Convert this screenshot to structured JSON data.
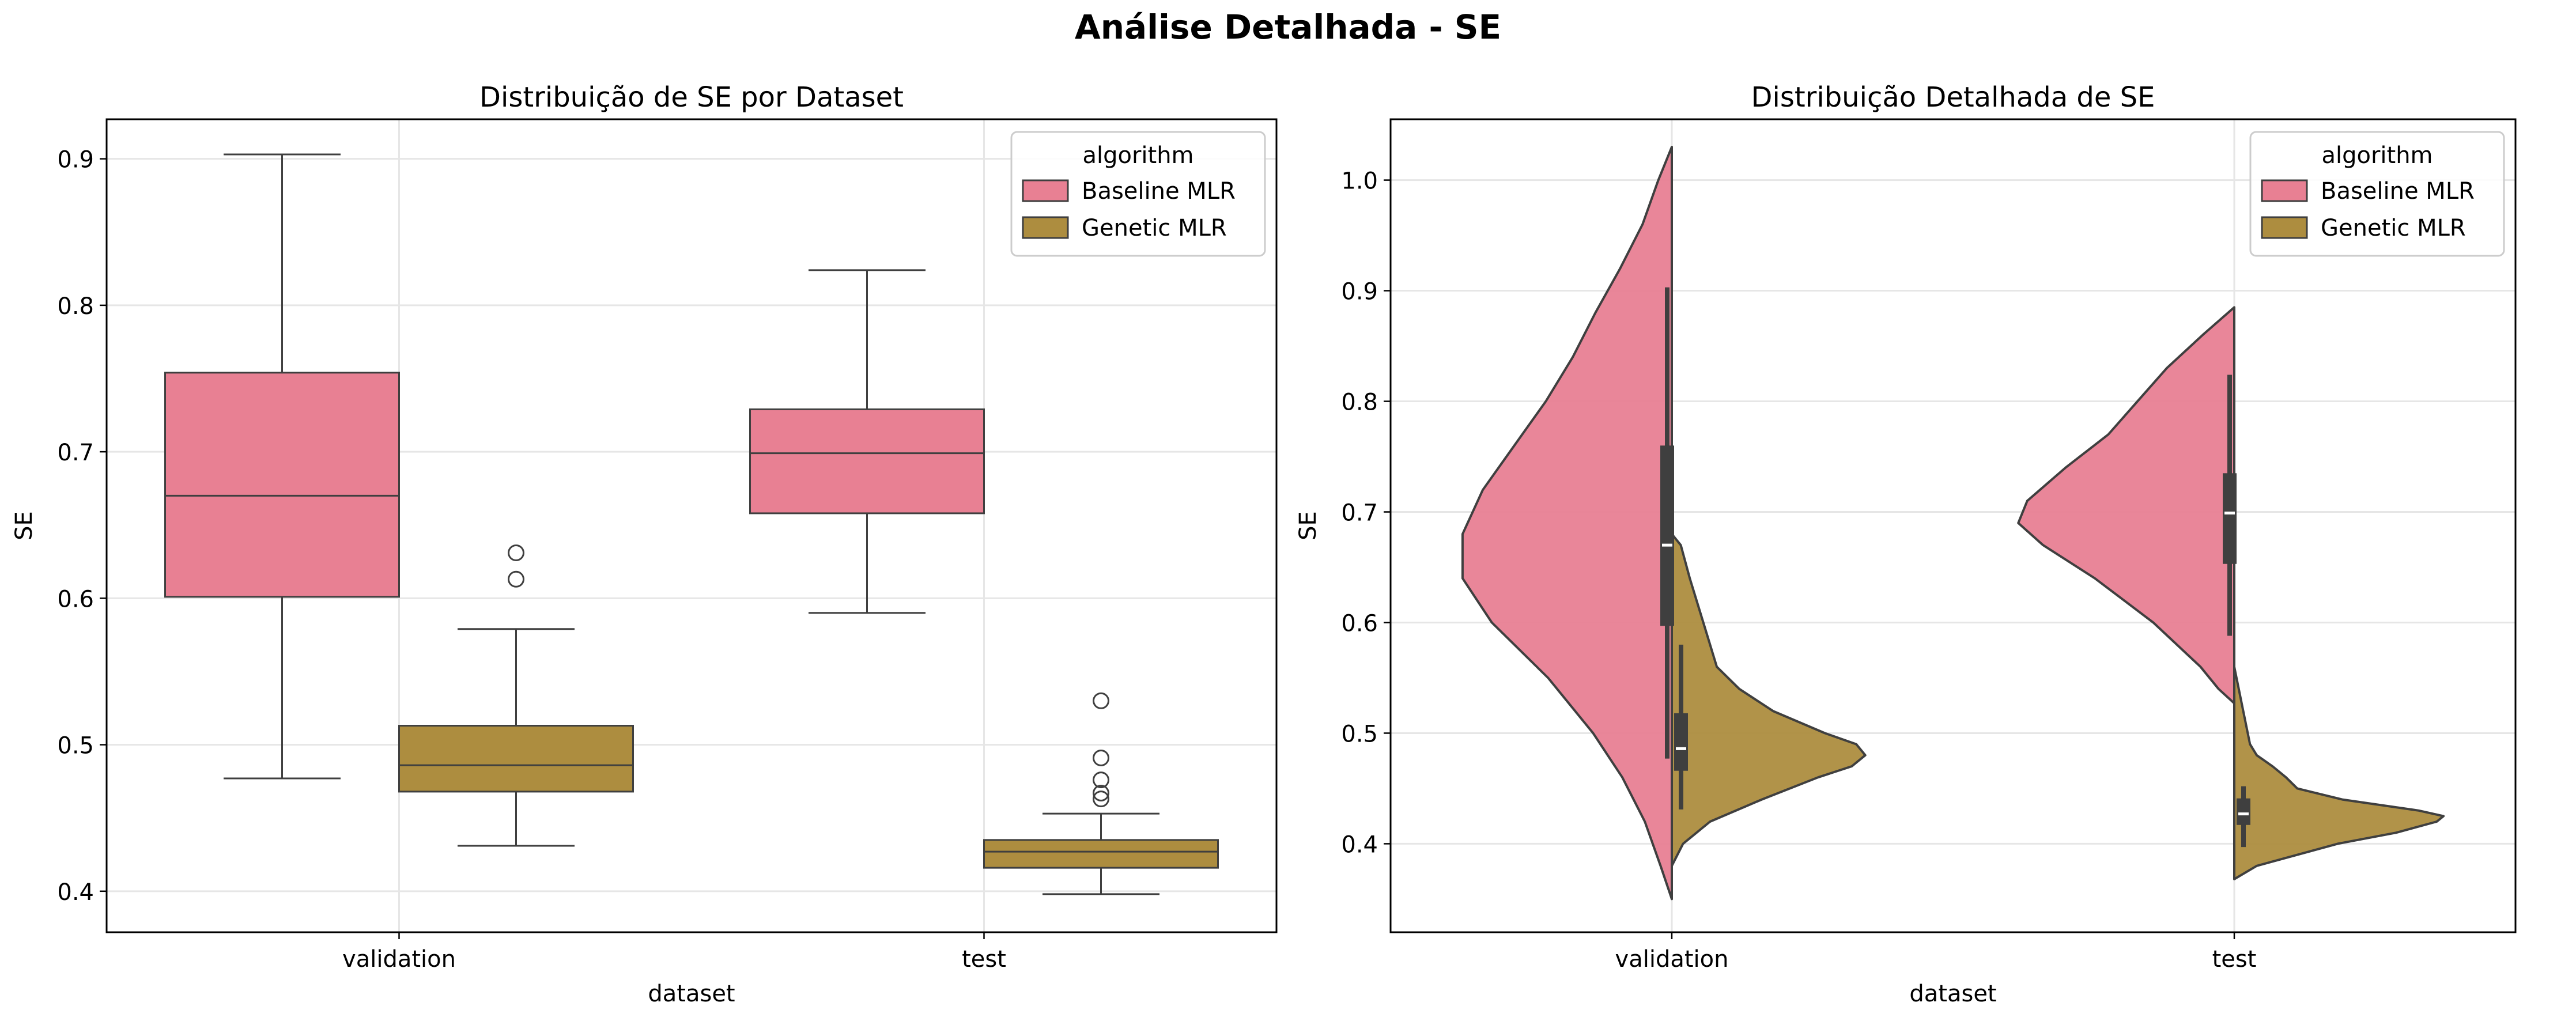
{
  "figure": {
    "title": "Análise Detalhada - SE"
  },
  "colors": {
    "baseline": "#e88093",
    "genetic": "#ad8d3f",
    "edge": "#3f3f3f",
    "grid": "#e6e6e6"
  },
  "chart_data": [
    {
      "type": "box",
      "title": "Distribuição de SE por Dataset",
      "xlabel": "dataset",
      "ylabel": "SE",
      "categories": [
        "validation",
        "test"
      ],
      "ylim": [
        0.372,
        0.927
      ],
      "yticks": [
        0.4,
        0.5,
        0.6,
        0.7,
        0.8,
        0.9
      ],
      "grid": true,
      "legend": {
        "title": "algorithm",
        "position": "top-right",
        "entries": [
          "Baseline MLR",
          "Genetic MLR"
        ]
      },
      "series": [
        {
          "name": "Baseline MLR",
          "color": "#e88093",
          "boxes": [
            {
              "category": "validation",
              "whislo": 0.477,
              "q1": 0.601,
              "med": 0.67,
              "q3": 0.754,
              "whishi": 0.903,
              "fliers": []
            },
            {
              "category": "test",
              "whislo": 0.59,
              "q1": 0.658,
              "med": 0.699,
              "q3": 0.729,
              "whishi": 0.824,
              "fliers": []
            }
          ]
        },
        {
          "name": "Genetic MLR",
          "color": "#ad8d3f",
          "boxes": [
            {
              "category": "validation",
              "whislo": 0.431,
              "q1": 0.468,
              "med": 0.486,
              "q3": 0.513,
              "whishi": 0.579,
              "fliers": [
                0.613,
                0.631
              ]
            },
            {
              "category": "test",
              "whislo": 0.398,
              "q1": 0.416,
              "med": 0.427,
              "q3": 0.435,
              "whishi": 0.453,
              "fliers": [
                0.463,
                0.467,
                0.476,
                0.491,
                0.53
              ]
            }
          ]
        }
      ]
    },
    {
      "type": "violin",
      "title": "Distribuição Detalhada de SE",
      "xlabel": "dataset",
      "ylabel": "SE",
      "categories": [
        "validation",
        "test"
      ],
      "ylim": [
        0.32,
        1.055
      ],
      "yticks": [
        0.4,
        0.5,
        0.6,
        0.7,
        0.8,
        0.9,
        1.0
      ],
      "grid": true,
      "split": true,
      "legend": {
        "title": "algorithm",
        "position": "top-right",
        "entries": [
          "Baseline MLR",
          "Genetic MLR"
        ]
      },
      "series": [
        {
          "name": "Baseline MLR",
          "color": "#e88093",
          "side": "left",
          "violins": [
            {
              "category": "validation",
              "density": [
                [
                  0.35,
                  0.0
                ],
                [
                  0.38,
                  0.05
                ],
                [
                  0.42,
                  0.12
                ],
                [
                  0.46,
                  0.22
                ],
                [
                  0.5,
                  0.35
                ],
                [
                  0.55,
                  0.55
                ],
                [
                  0.6,
                  0.8
                ],
                [
                  0.64,
                  0.93
                ],
                [
                  0.68,
                  0.93
                ],
                [
                  0.72,
                  0.84
                ],
                [
                  0.76,
                  0.7
                ],
                [
                  0.8,
                  0.56
                ],
                [
                  0.84,
                  0.44
                ],
                [
                  0.88,
                  0.34
                ],
                [
                  0.92,
                  0.23
                ],
                [
                  0.96,
                  0.13
                ],
                [
                  1.0,
                  0.06
                ],
                [
                  1.03,
                  0.0
                ]
              ],
              "q1": 0.597,
              "med": 0.67,
              "q3": 0.76,
              "whislo": 0.477,
              "whishi": 0.903
            },
            {
              "category": "test",
              "density": [
                [
                  0.527,
                  0.0
                ],
                [
                  0.54,
                  0.07
                ],
                [
                  0.56,
                  0.15
                ],
                [
                  0.6,
                  0.36
                ],
                [
                  0.64,
                  0.62
                ],
                [
                  0.67,
                  0.85
                ],
                [
                  0.69,
                  0.96
                ],
                [
                  0.71,
                  0.92
                ],
                [
                  0.74,
                  0.75
                ],
                [
                  0.77,
                  0.56
                ],
                [
                  0.8,
                  0.43
                ],
                [
                  0.83,
                  0.3
                ],
                [
                  0.86,
                  0.14
                ],
                [
                  0.885,
                  0.0
                ]
              ],
              "q1": 0.653,
              "med": 0.699,
              "q3": 0.735,
              "whislo": 0.588,
              "whishi": 0.824
            }
          ]
        },
        {
          "name": "Genetic MLR",
          "color": "#ad8d3f",
          "side": "right",
          "violins": [
            {
              "category": "validation",
              "density": [
                [
                  0.38,
                  0.0
                ],
                [
                  0.4,
                  0.05
                ],
                [
                  0.42,
                  0.17
                ],
                [
                  0.44,
                  0.4
                ],
                [
                  0.46,
                  0.65
                ],
                [
                  0.47,
                  0.8
                ],
                [
                  0.48,
                  0.86
                ],
                [
                  0.49,
                  0.82
                ],
                [
                  0.5,
                  0.68
                ],
                [
                  0.52,
                  0.45
                ],
                [
                  0.54,
                  0.3
                ],
                [
                  0.56,
                  0.2
                ],
                [
                  0.6,
                  0.14
                ],
                [
                  0.64,
                  0.08
                ],
                [
                  0.67,
                  0.04
                ],
                [
                  0.68,
                  0.0
                ]
              ],
              "q1": 0.466,
              "med": 0.486,
              "q3": 0.518,
              "whislo": 0.431,
              "whishi": 0.58
            },
            {
              "category": "test",
              "density": [
                [
                  0.368,
                  0.0
                ],
                [
                  0.38,
                  0.1
                ],
                [
                  0.4,
                  0.46
                ],
                [
                  0.41,
                  0.72
                ],
                [
                  0.42,
                  0.9
                ],
                [
                  0.425,
                  0.93
                ],
                [
                  0.43,
                  0.82
                ],
                [
                  0.44,
                  0.48
                ],
                [
                  0.45,
                  0.28
                ],
                [
                  0.46,
                  0.23
                ],
                [
                  0.47,
                  0.17
                ],
                [
                  0.48,
                  0.1
                ],
                [
                  0.49,
                  0.07
                ],
                [
                  0.52,
                  0.04
                ],
                [
                  0.56,
                  0.0
                ]
              ],
              "q1": 0.417,
              "med": 0.427,
              "q3": 0.441,
              "whislo": 0.397,
              "whishi": 0.452
            }
          ]
        }
      ]
    }
  ]
}
